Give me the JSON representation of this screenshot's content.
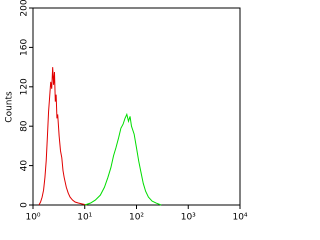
{
  "chart_data": {
    "type": "line",
    "y_label": "Counts",
    "x_scale": "log",
    "xlim": [
      1,
      10000
    ],
    "xticks": [
      {
        "value": 1,
        "label": "10⁰"
      },
      {
        "value": 10,
        "label": "10¹"
      },
      {
        "value": 100,
        "label": "10²"
      },
      {
        "value": 1000,
        "label": "10³"
      },
      {
        "value": 10000,
        "label": "10⁴"
      }
    ],
    "ylim": [
      0,
      200
    ],
    "yticks": [
      0,
      40,
      80,
      120,
      160,
      200
    ],
    "series": [
      {
        "color": "#e00000",
        "x": [
          1.3,
          1.4,
          1.5,
          1.6,
          1.7,
          1.8,
          1.9,
          2.0,
          2.1,
          2.2,
          2.3,
          2.4,
          2.5,
          2.6,
          2.7,
          2.8,
          2.9,
          3.0,
          3.2,
          3.4,
          3.6,
          3.8,
          4.0,
          4.4,
          4.8,
          5.2,
          5.8,
          6.5,
          7.5,
          9,
          11
        ],
        "values": [
          0,
          3,
          8,
          15,
          28,
          45,
          70,
          95,
          110,
          125,
          118,
          140,
          122,
          135,
          105,
          112,
          88,
          92,
          70,
          55,
          48,
          35,
          28,
          18,
          12,
          8,
          5,
          3,
          2,
          1,
          0
        ]
      },
      {
        "color": "#00dd00",
        "x": [
          10,
          13,
          16,
          20,
          24,
          28,
          32,
          36,
          40,
          45,
          50,
          55,
          60,
          65,
          70,
          75,
          80,
          90,
          100,
          110,
          120,
          135,
          150,
          170,
          200,
          240,
          300
        ],
        "values": [
          0,
          2,
          5,
          10,
          18,
          28,
          38,
          50,
          58,
          68,
          78,
          82,
          88,
          92,
          85,
          90,
          80,
          72,
          58,
          45,
          35,
          22,
          14,
          8,
          4,
          2,
          0
        ]
      }
    ]
  }
}
